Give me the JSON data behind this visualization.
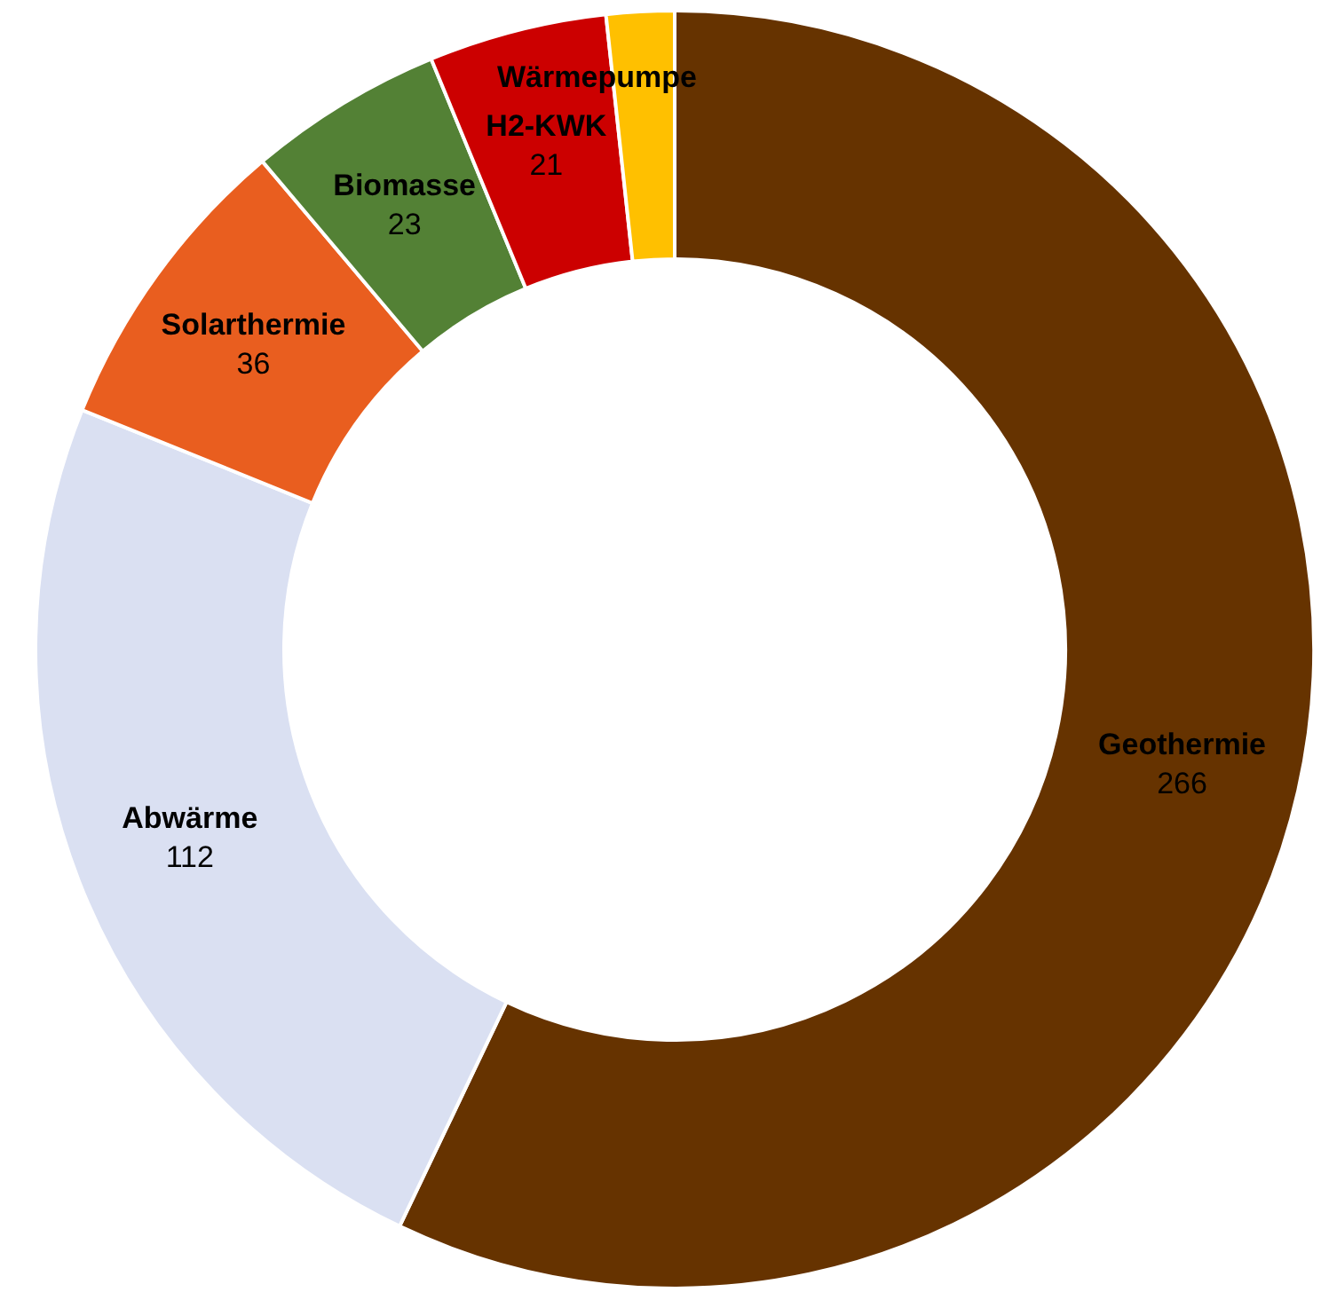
{
  "chart_data": {
    "type": "donut",
    "categories": [
      "Geothermie",
      "Abwärme",
      "Solarthermie",
      "Biomasse",
      "H2-KWK",
      "Wärmepumpe"
    ],
    "values": [
      266,
      112,
      36,
      23,
      21,
      8
    ],
    "value_labels": [
      "266",
      "112",
      "36",
      "23",
      "21",
      null
    ],
    "colors": [
      "#663300",
      "#dae0f2",
      "#e95e1f",
      "#538135",
      "#cc0000",
      "#ffc000"
    ],
    "legend": false
  }
}
